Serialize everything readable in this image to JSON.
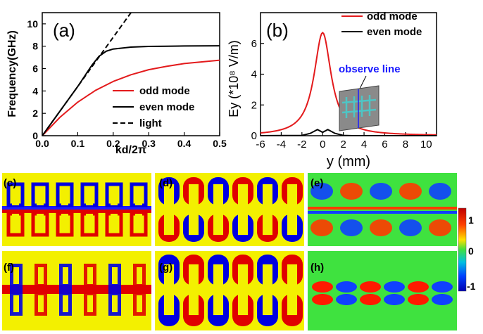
{
  "colors": {
    "odd": "#e31a1c",
    "even": "#000000",
    "light": "#000000",
    "yellow": "#f3f000",
    "red": "#e00000",
    "blue": "#0000e0",
    "green": "#3fe23f",
    "device": "#4ec5c5"
  },
  "chart_data": [
    {
      "type": "line",
      "label": "(a)",
      "xlabel": "kd/2π",
      "ylabel": "Frequency(GHz)",
      "xlim": [
        0.0,
        0.5
      ],
      "ylim": [
        0,
        11
      ],
      "xticks": [
        "0.0",
        "0.1",
        "0.2",
        "0.3",
        "0.4",
        "0.5"
      ],
      "yticks": [
        "0",
        "2",
        "4",
        "6",
        "8",
        "10"
      ],
      "legend": [
        "odd mode",
        "even mode",
        "light"
      ],
      "series": [
        {
          "name": "odd mode",
          "x": [
            0,
            0.05,
            0.1,
            0.15,
            0.2,
            0.25,
            0.3,
            0.35,
            0.4,
            0.45,
            0.5
          ],
          "values": [
            0,
            1.65,
            3.0,
            4.05,
            4.85,
            5.45,
            5.9,
            6.2,
            6.45,
            6.6,
            6.75
          ]
        },
        {
          "name": "even mode",
          "x": [
            0,
            0.05,
            0.1,
            0.14,
            0.16,
            0.18,
            0.2,
            0.25,
            0.3,
            0.35,
            0.4,
            0.45,
            0.5
          ],
          "values": [
            0,
            2.2,
            4.4,
            6.3,
            7.1,
            7.55,
            7.75,
            7.92,
            7.98,
            8.0,
            8.02,
            8.03,
            8.04
          ]
        },
        {
          "name": "light",
          "x": [
            0,
            0.05,
            0.1,
            0.15,
            0.2,
            0.25
          ],
          "values": [
            0,
            2.2,
            4.4,
            6.6,
            8.8,
            11.0
          ]
        }
      ]
    },
    {
      "type": "line",
      "label": "(b)",
      "xlabel": "y (mm)",
      "ylabel": "Ey (*10⁸ V/m)",
      "xlim": [
        -6,
        11
      ],
      "ylim": [
        0,
        8
      ],
      "xticks": [
        "-6",
        "-4",
        "-2",
        "0",
        "2",
        "4",
        "6",
        "8",
        "10"
      ],
      "yticks": [
        "0",
        "2",
        "4",
        "6"
      ],
      "legend": [
        "odd mode",
        "even mode"
      ],
      "annotation": "observe line",
      "series": [
        {
          "name": "odd mode",
          "peak_y": 0,
          "peak": 6.7,
          "width": 1.0
        },
        {
          "name": "even mode",
          "x": [
            -2,
            -1.2,
            -0.5,
            0,
            0.5,
            1.2,
            2,
            3
          ],
          "values": [
            0.02,
            0.15,
            0.4,
            0.22,
            0.4,
            0.15,
            0.02,
            0
          ]
        }
      ]
    }
  ],
  "fieldmaps": {
    "labels": [
      "(c)",
      "(d)",
      "(e)",
      "(f)",
      "(g)",
      "(h)"
    ]
  },
  "colorbar": {
    "ticks": [
      "1",
      "0",
      "-1"
    ]
  }
}
